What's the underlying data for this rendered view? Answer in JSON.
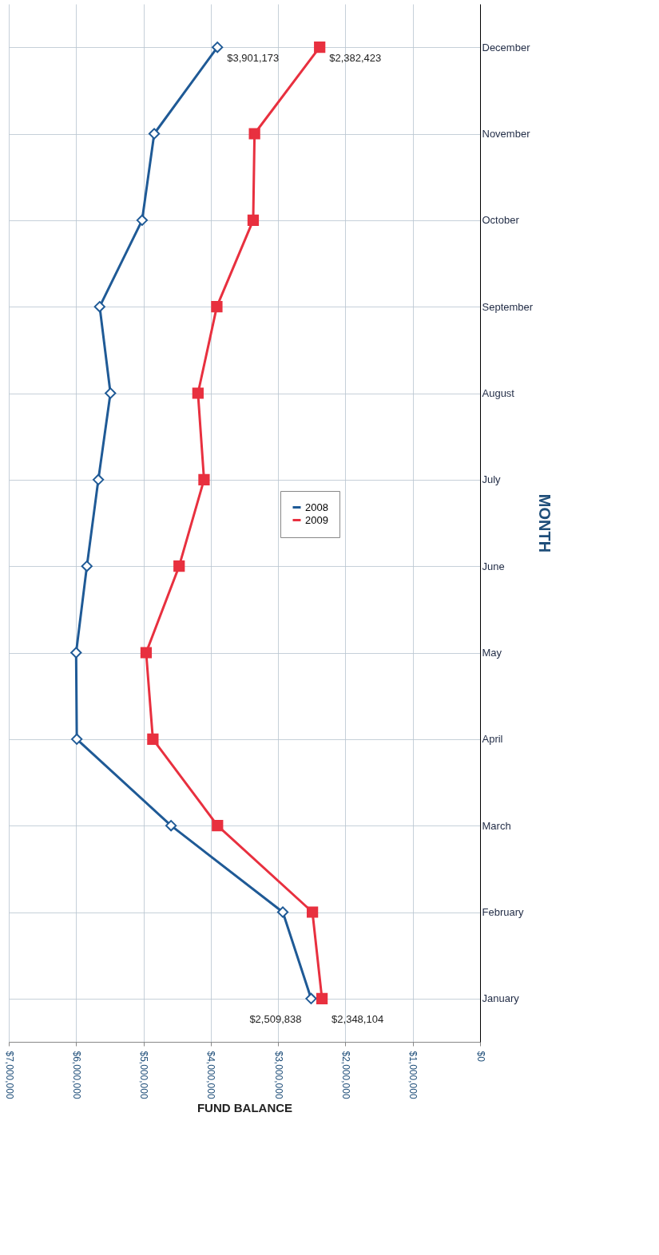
{
  "chart_data": {
    "type": "line",
    "orientation": "horizontal",
    "xlabel": "FUND BALANCE",
    "ylabel": "MONTH",
    "categories": [
      "December",
      "November",
      "October",
      "September",
      "August",
      "July",
      "June",
      "May",
      "April",
      "March",
      "February",
      "January"
    ],
    "series": [
      {
        "name": "2008",
        "color": "#1f5a96",
        "marker": "diamond",
        "values": [
          3901173,
          4840000,
          5020000,
          5650000,
          5490000,
          5670000,
          5840000,
          6000000,
          5990000,
          4590000,
          2930000,
          2509838
        ]
      },
      {
        "name": "2009",
        "color": "#e8303f",
        "marker": "square",
        "values": [
          2382423,
          3350000,
          3370000,
          3910000,
          4190000,
          4100000,
          4470000,
          4960000,
          4860000,
          3900000,
          2490000,
          2348104
        ]
      }
    ],
    "xlim": [
      7000000,
      0
    ],
    "xticks": [
      {
        "value": 7000000,
        "label": "$7,000,000"
      },
      {
        "value": 6000000,
        "label": "$6,000,000"
      },
      {
        "value": 5000000,
        "label": "$5,000,000"
      },
      {
        "value": 4000000,
        "label": "$4,000,000"
      },
      {
        "value": 3000000,
        "label": "$3,000,000"
      },
      {
        "value": 2000000,
        "label": "$2,000,000"
      },
      {
        "value": 1000000,
        "label": "$1,000,000"
      },
      {
        "value": 0,
        "label": "$0"
      }
    ],
    "annotations": [
      {
        "text": "$2,509,838",
        "x": 2509838,
        "y": "January"
      },
      {
        "text": "$2,348,104",
        "x": 2348104,
        "y": "January"
      },
      {
        "text": "$3,901,173",
        "x": 3901173,
        "y": "December"
      },
      {
        "text": "$2,382,423",
        "x": 2382423,
        "y": "December"
      }
    ],
    "grid": true,
    "legend": "right",
    "line_style": "solid"
  }
}
